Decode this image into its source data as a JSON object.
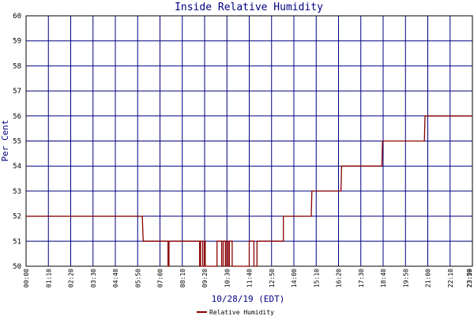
{
  "chart_data": {
    "type": "line",
    "title": "Inside Relative Humidity",
    "xlabel": "10/28/19 (EDT)",
    "ylabel": "Per Cent",
    "ylim": [
      50,
      60
    ],
    "xlim_minutes": [
      0,
      1440
    ],
    "yticks": [
      "50",
      "51",
      "52",
      "53",
      "54",
      "55",
      "56",
      "57",
      "58",
      "59",
      "60"
    ],
    "xticks": [
      "00:00",
      "01:10",
      "02:20",
      "03:30",
      "04:40",
      "05:50",
      "07:00",
      "08:10",
      "09:20",
      "10:30",
      "11:40",
      "12:50",
      "14:00",
      "15:10",
      "16:20",
      "17:30",
      "18:40",
      "19:50",
      "21:00",
      "22:10",
      "23:20",
      "23:59"
    ],
    "grid": true,
    "legend_position": "bottom-center",
    "colors": {
      "line": "#8b0000",
      "grid": "#000080",
      "axis": "#000000",
      "title": "#000080"
    },
    "series": [
      {
        "name": "Relative Humidity",
        "points": [
          [
            0,
            52
          ],
          [
            375,
            52
          ],
          [
            378,
            51
          ],
          [
            458,
            51
          ],
          [
            458,
            50
          ],
          [
            461,
            50
          ],
          [
            461,
            51
          ],
          [
            560,
            51
          ],
          [
            560,
            50
          ],
          [
            563,
            50
          ],
          [
            563,
            51
          ],
          [
            570,
            51
          ],
          [
            570,
            50
          ],
          [
            575,
            50
          ],
          [
            575,
            51
          ],
          [
            578,
            51
          ],
          [
            578,
            50
          ],
          [
            616,
            50
          ],
          [
            616,
            51
          ],
          [
            631,
            51
          ],
          [
            631,
            50
          ],
          [
            636,
            50
          ],
          [
            636,
            51
          ],
          [
            643,
            51
          ],
          [
            643,
            50
          ],
          [
            647,
            50
          ],
          [
            647,
            51
          ],
          [
            652,
            51
          ],
          [
            652,
            50
          ],
          [
            656,
            50
          ],
          [
            656,
            51
          ],
          [
            665,
            51
          ],
          [
            665,
            50
          ],
          [
            720,
            50
          ],
          [
            720,
            51
          ],
          [
            735,
            51
          ],
          [
            735,
            50
          ],
          [
            745,
            50
          ],
          [
            745,
            51
          ],
          [
            830,
            51
          ],
          [
            830,
            52
          ],
          [
            920,
            52
          ],
          [
            922,
            53
          ],
          [
            1016,
            53
          ],
          [
            1018,
            54
          ],
          [
            1148,
            54
          ],
          [
            1150,
            55
          ],
          [
            1285,
            55
          ],
          [
            1287,
            56
          ],
          [
            1440,
            56
          ]
        ]
      }
    ]
  }
}
